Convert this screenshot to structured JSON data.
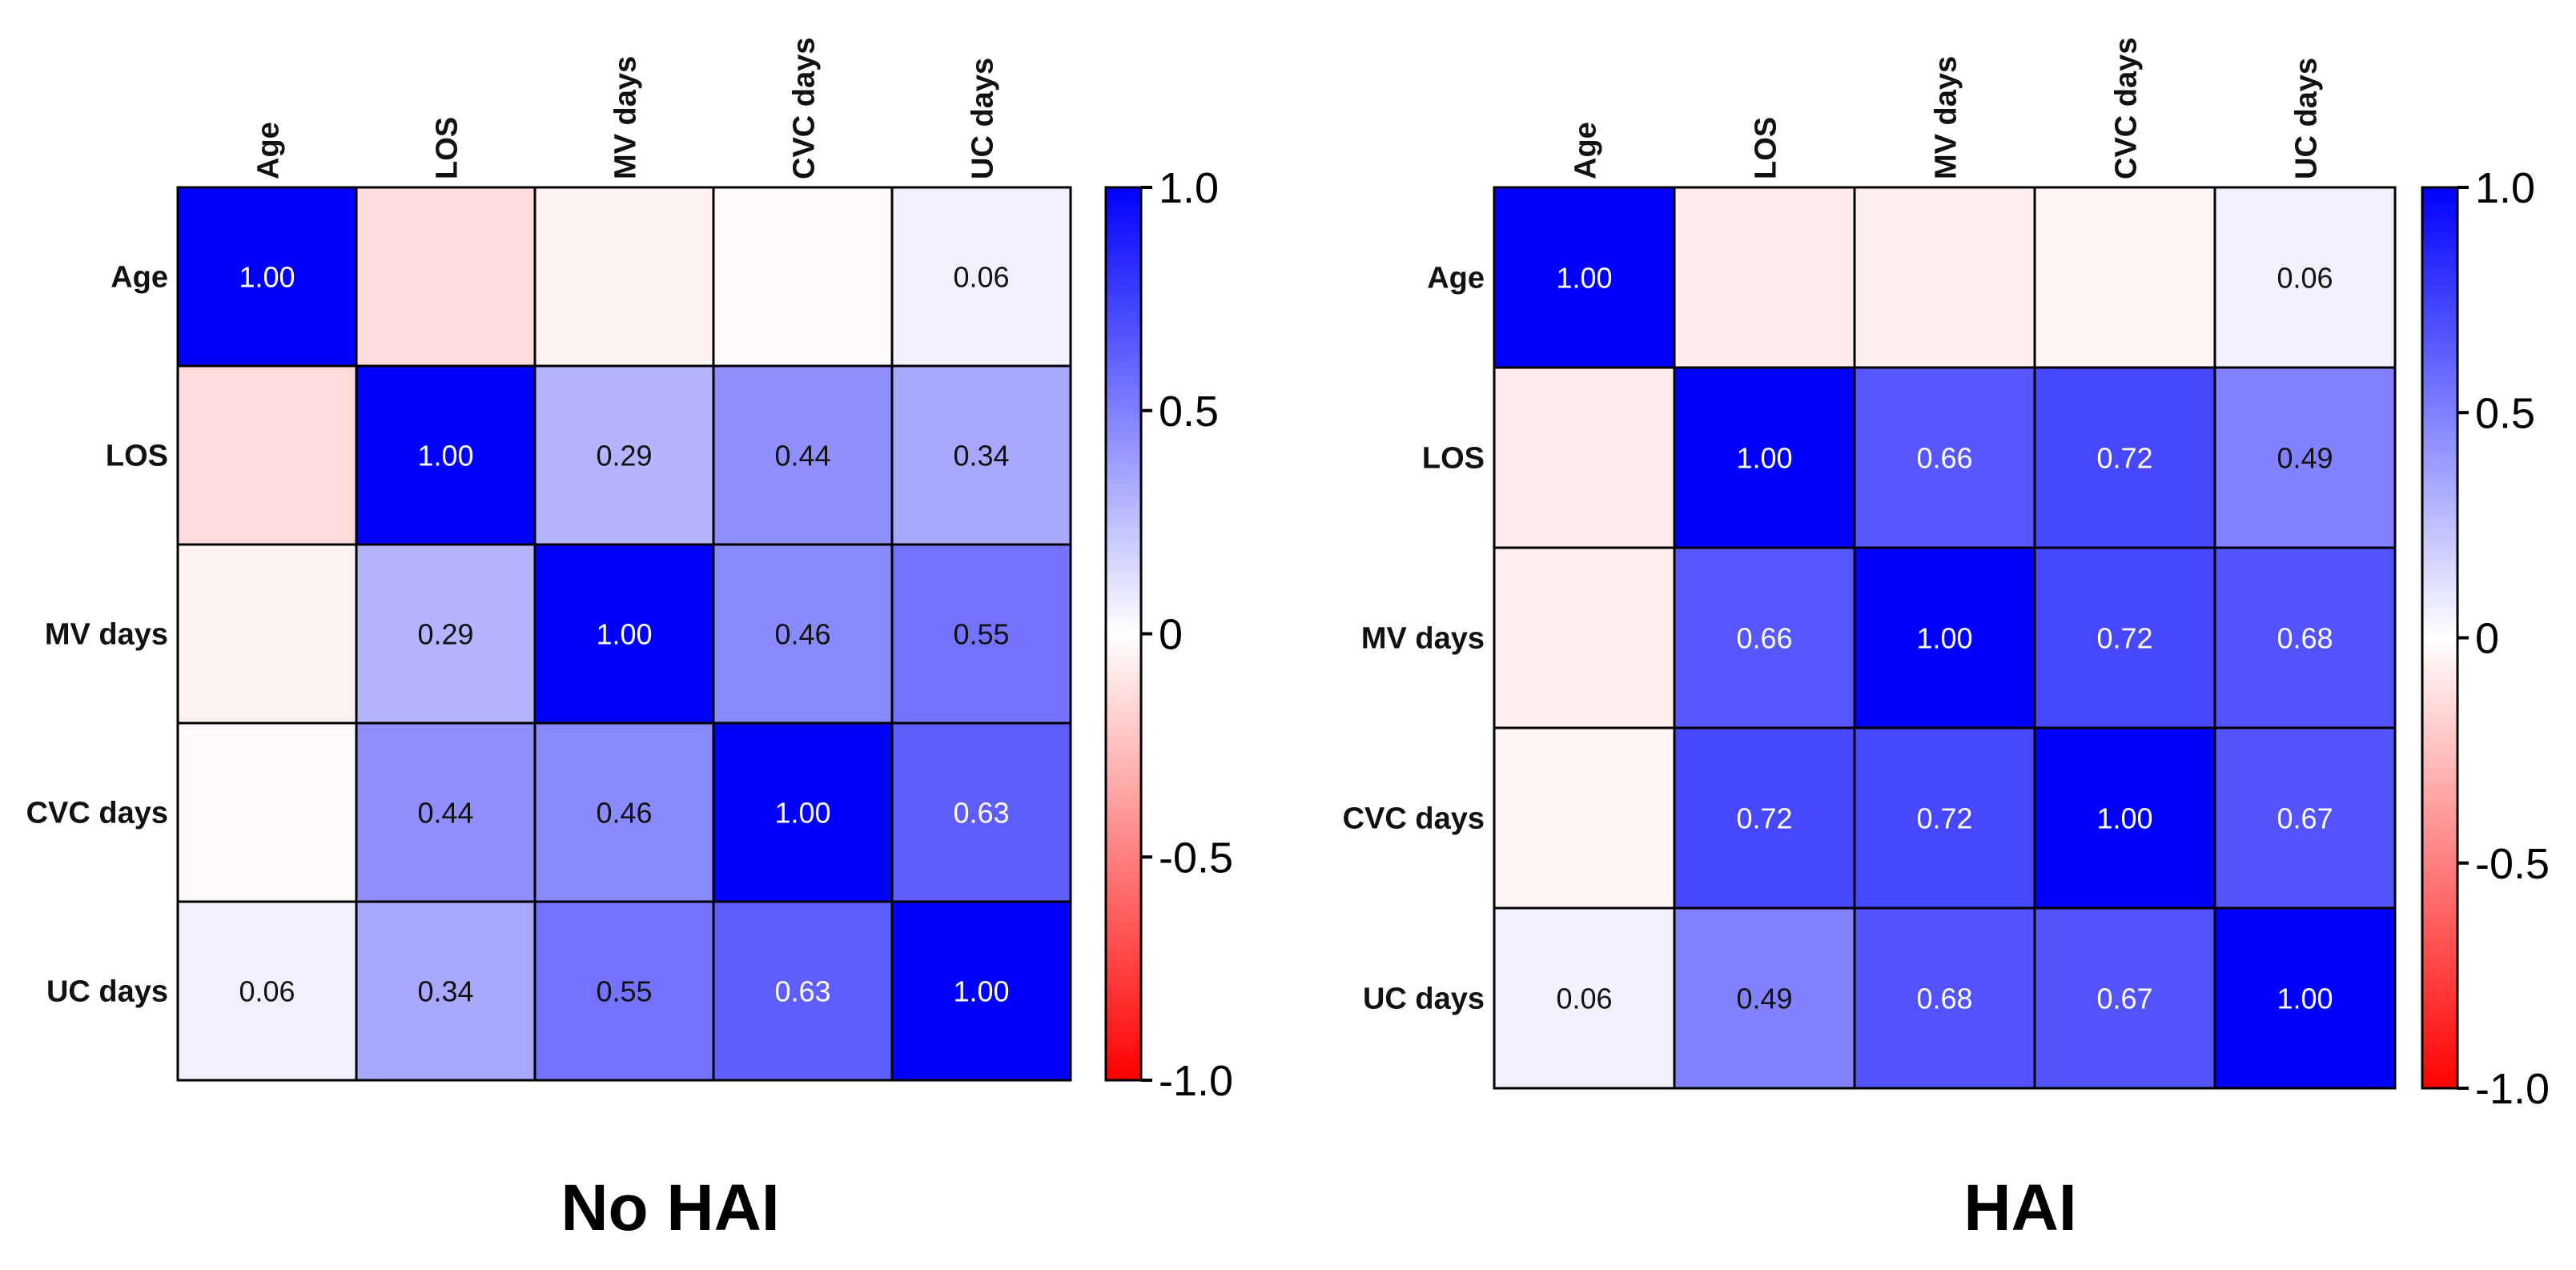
{
  "chart_data": [
    {
      "type": "heatmap",
      "title": "No HAI",
      "variables": [
        "Age",
        "LOS",
        "MV days",
        "CVC days",
        "UC days"
      ],
      "matrix": [
        [
          1.0,
          -0.14,
          -0.05,
          -0.02,
          0.06
        ],
        [
          -0.14,
          1.0,
          0.29,
          0.44,
          0.34
        ],
        [
          -0.05,
          0.29,
          1.0,
          0.46,
          0.55
        ],
        [
          -0.02,
          0.44,
          0.46,
          1.0,
          0.63
        ],
        [
          0.06,
          0.34,
          0.55,
          0.63,
          1.0
        ]
      ],
      "labels": [
        [
          "1.00",
          "",
          "",
          "",
          "0.06"
        ],
        [
          "",
          "1.00",
          "0.29",
          "0.44",
          "0.34"
        ],
        [
          "",
          "0.29",
          "1.00",
          "0.46",
          "0.55"
        ],
        [
          "",
          "0.44",
          "0.46",
          "1.00",
          "0.63"
        ],
        [
          "0.06",
          "0.34",
          "0.55",
          "0.63",
          "1.00"
        ]
      ],
      "colorbar": {
        "range": [
          -1.0,
          1.0
        ],
        "ticks": [
          "1.0",
          "0.5",
          "0",
          "-0.5",
          "-1.0"
        ],
        "low_color": "#ff0000",
        "mid_color": "#ffffff",
        "high_color": "#0000ff"
      }
    },
    {
      "type": "heatmap",
      "title": "HAI",
      "variables": [
        "Age",
        "LOS",
        "MV days",
        "CVC days",
        "UC days"
      ],
      "matrix": [
        [
          1.0,
          -0.08,
          -0.06,
          -0.04,
          0.06
        ],
        [
          -0.08,
          1.0,
          0.66,
          0.72,
          0.49
        ],
        [
          -0.06,
          0.66,
          1.0,
          0.72,
          0.68
        ],
        [
          -0.04,
          0.72,
          0.72,
          1.0,
          0.67
        ],
        [
          0.06,
          0.49,
          0.68,
          0.67,
          1.0
        ]
      ],
      "labels": [
        [
          "1.00",
          "",
          "",
          "",
          "0.06"
        ],
        [
          "",
          "1.00",
          "0.66",
          "0.72",
          "0.49"
        ],
        [
          "",
          "0.66",
          "1.00",
          "0.72",
          "0.68"
        ],
        [
          "",
          "0.72",
          "0.72",
          "1.00",
          "0.67"
        ],
        [
          "0.06",
          "0.49",
          "0.68",
          "0.67",
          "1.00"
        ]
      ],
      "colorbar": {
        "range": [
          -1.0,
          1.0
        ],
        "ticks": [
          "1.0",
          "0.5",
          "0",
          "-0.5",
          "-1.0"
        ],
        "low_color": "#ff0000",
        "mid_color": "#ffffff",
        "high_color": "#0000ff"
      }
    }
  ]
}
